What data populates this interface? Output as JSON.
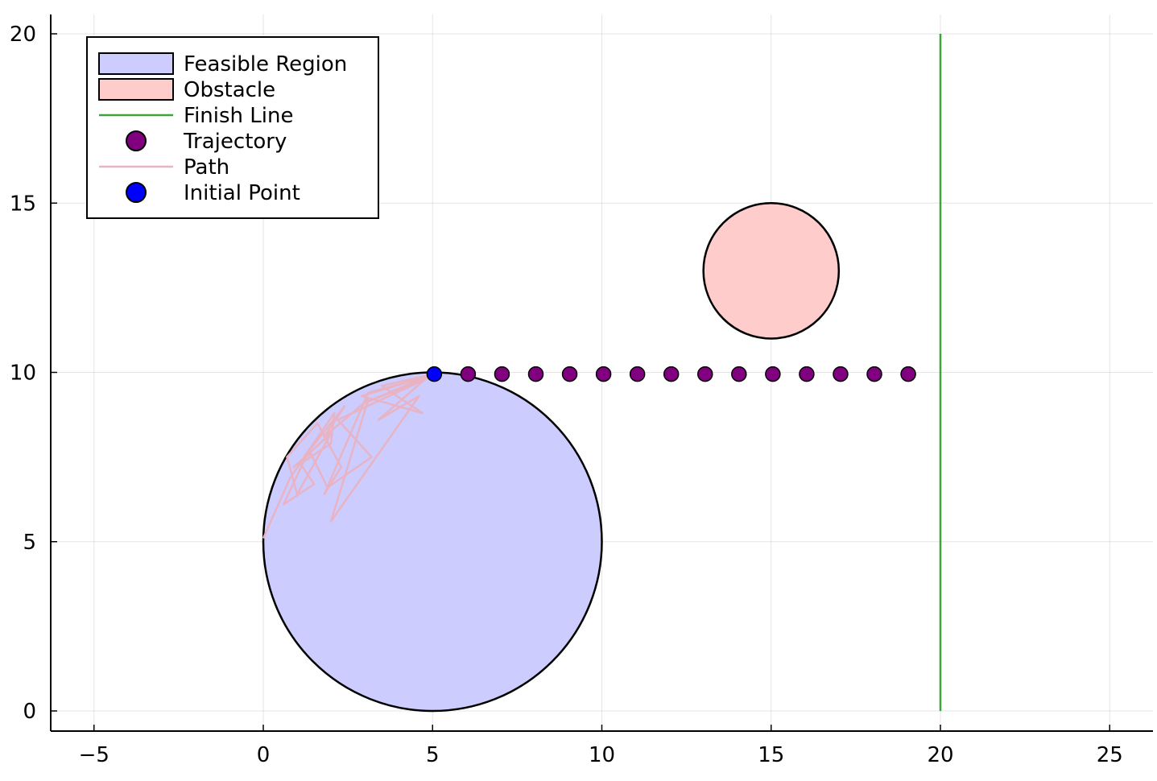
{
  "chart_data": {
    "type": "scatter",
    "title": "",
    "xlabel": "",
    "ylabel": "",
    "xlim": [
      -6.3,
      26.3
    ],
    "ylim": [
      -0.6,
      20.6
    ],
    "grid": true,
    "x_ticks": [
      -5,
      0,
      5,
      10,
      15,
      20,
      25
    ],
    "y_ticks": [
      0,
      5,
      10,
      15,
      20
    ],
    "x_tick_labels": [
      "−5",
      "0",
      "5",
      "10",
      "15",
      "20",
      "25"
    ],
    "y_tick_labels": [
      "0",
      "5",
      "10",
      "15",
      "20"
    ],
    "legend_position": "top-left",
    "feasible_region": {
      "name": "Feasible Region",
      "shape": "circle",
      "center": [
        5,
        5
      ],
      "radius": 5,
      "color": "#ccccff"
    },
    "obstacle": {
      "name": "Obstacle",
      "shape": "circle",
      "center": [
        15,
        13
      ],
      "radius": 2,
      "color": "#ffcccc"
    },
    "finish_line": {
      "name": "Finish Line",
      "x": [
        20,
        20
      ],
      "y": [
        0,
        20
      ],
      "color": "#3da33d"
    },
    "trajectory": {
      "name": "Trajectory",
      "color": "#800080",
      "x": [
        6.05,
        7.05,
        8.05,
        9.05,
        10.05,
        11.05,
        12.05,
        13.05,
        14.05,
        15.05,
        16.05,
        17.05,
        18.05,
        19.05
      ],
      "y": [
        9.95,
        9.95,
        9.95,
        9.95,
        9.95,
        9.95,
        9.95,
        9.95,
        9.95,
        9.95,
        9.95,
        9.95,
        9.95,
        9.95
      ]
    },
    "path": {
      "name": "Path",
      "color": "#e8b4c4",
      "x": [
        0.0,
        0.4,
        0.8,
        1.3,
        0.6,
        1.5,
        1.1,
        2.0,
        2.1,
        1.2,
        2.4,
        1.8,
        3.1,
        2.0,
        4.6,
        3.4,
        4.9,
        2.9,
        4.7,
        3.5,
        5.0,
        3.0,
        4.8,
        2.2,
        3.2,
        1.9,
        1.4,
        0.9,
        2.0,
        1.0,
        0.7,
        1.6,
        2.3,
        1.8,
        3.1,
        4.2,
        4.8,
        5.0
      ],
      "y": [
        5.1,
        6.0,
        6.9,
        7.6,
        6.1,
        6.7,
        7.3,
        7.9,
        8.8,
        7.5,
        9.0,
        8.1,
        9.2,
        5.6,
        9.3,
        8.6,
        9.9,
        9.3,
        8.8,
        9.6,
        9.95,
        9.1,
        9.8,
        8.6,
        7.5,
        6.6,
        7.6,
        7.2,
        8.2,
        6.4,
        7.5,
        8.5,
        7.2,
        6.4,
        9.4,
        9.7,
        9.9,
        9.95
      ]
    },
    "initial_point": {
      "name": "Initial Point",
      "x": 5.05,
      "y": 9.95,
      "color": "#0000ff"
    },
    "legend": [
      {
        "label": "Feasible Region",
        "kind": "patch",
        "color": "#ccccff"
      },
      {
        "label": "Obstacle",
        "kind": "patch",
        "color": "#ffcccc"
      },
      {
        "label": "Finish Line",
        "kind": "line",
        "color": "#3da33d"
      },
      {
        "label": "Trajectory",
        "kind": "marker",
        "color": "#800080"
      },
      {
        "label": "Path",
        "kind": "line",
        "color": "#e8b4c4"
      },
      {
        "label": "Initial Point",
        "kind": "marker",
        "color": "#0000ff"
      }
    ]
  }
}
